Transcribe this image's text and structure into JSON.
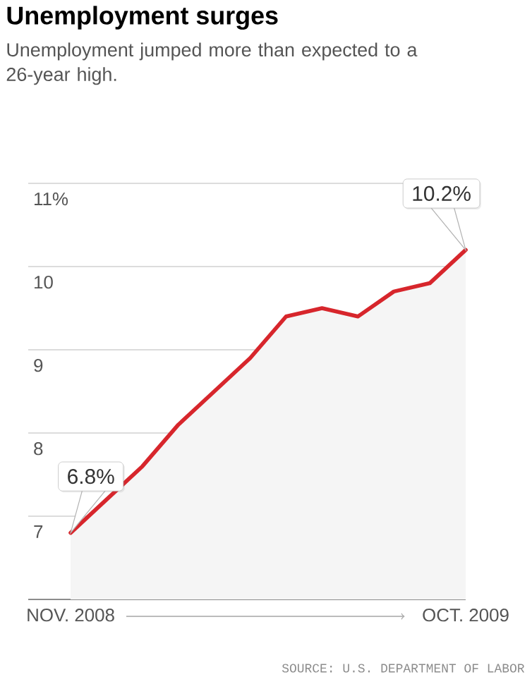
{
  "chart_data": {
    "type": "area",
    "title": "Unemployment surges",
    "subtitle": "Unemployment jumped more than expected to a 26-year high.",
    "categories": [
      "NOV. 2008",
      null,
      null,
      null,
      null,
      null,
      null,
      null,
      null,
      null,
      null,
      "OCT. 2009"
    ],
    "series": [
      {
        "color": "#d7262c",
        "values": [
          6.8,
          7.2,
          7.6,
          8.1,
          8.5,
          8.9,
          9.4,
          9.5,
          9.4,
          9.7,
          9.8,
          10.2
        ]
      }
    ],
    "ylim": [
      6,
      11
    ],
    "yticks": [
      7,
      8,
      9,
      10,
      {
        "value": 11,
        "label": "11%"
      }
    ],
    "grid": "y",
    "annotations": [
      {
        "text": "6.8%",
        "x": "NOV. 2008",
        "y": 6.8
      },
      {
        "text": "10.2%",
        "x": "OCT. 2009",
        "y": 10.2
      },
      "SOURCE: U.S. DEPARTMENT OF LABOR"
    ]
  }
}
